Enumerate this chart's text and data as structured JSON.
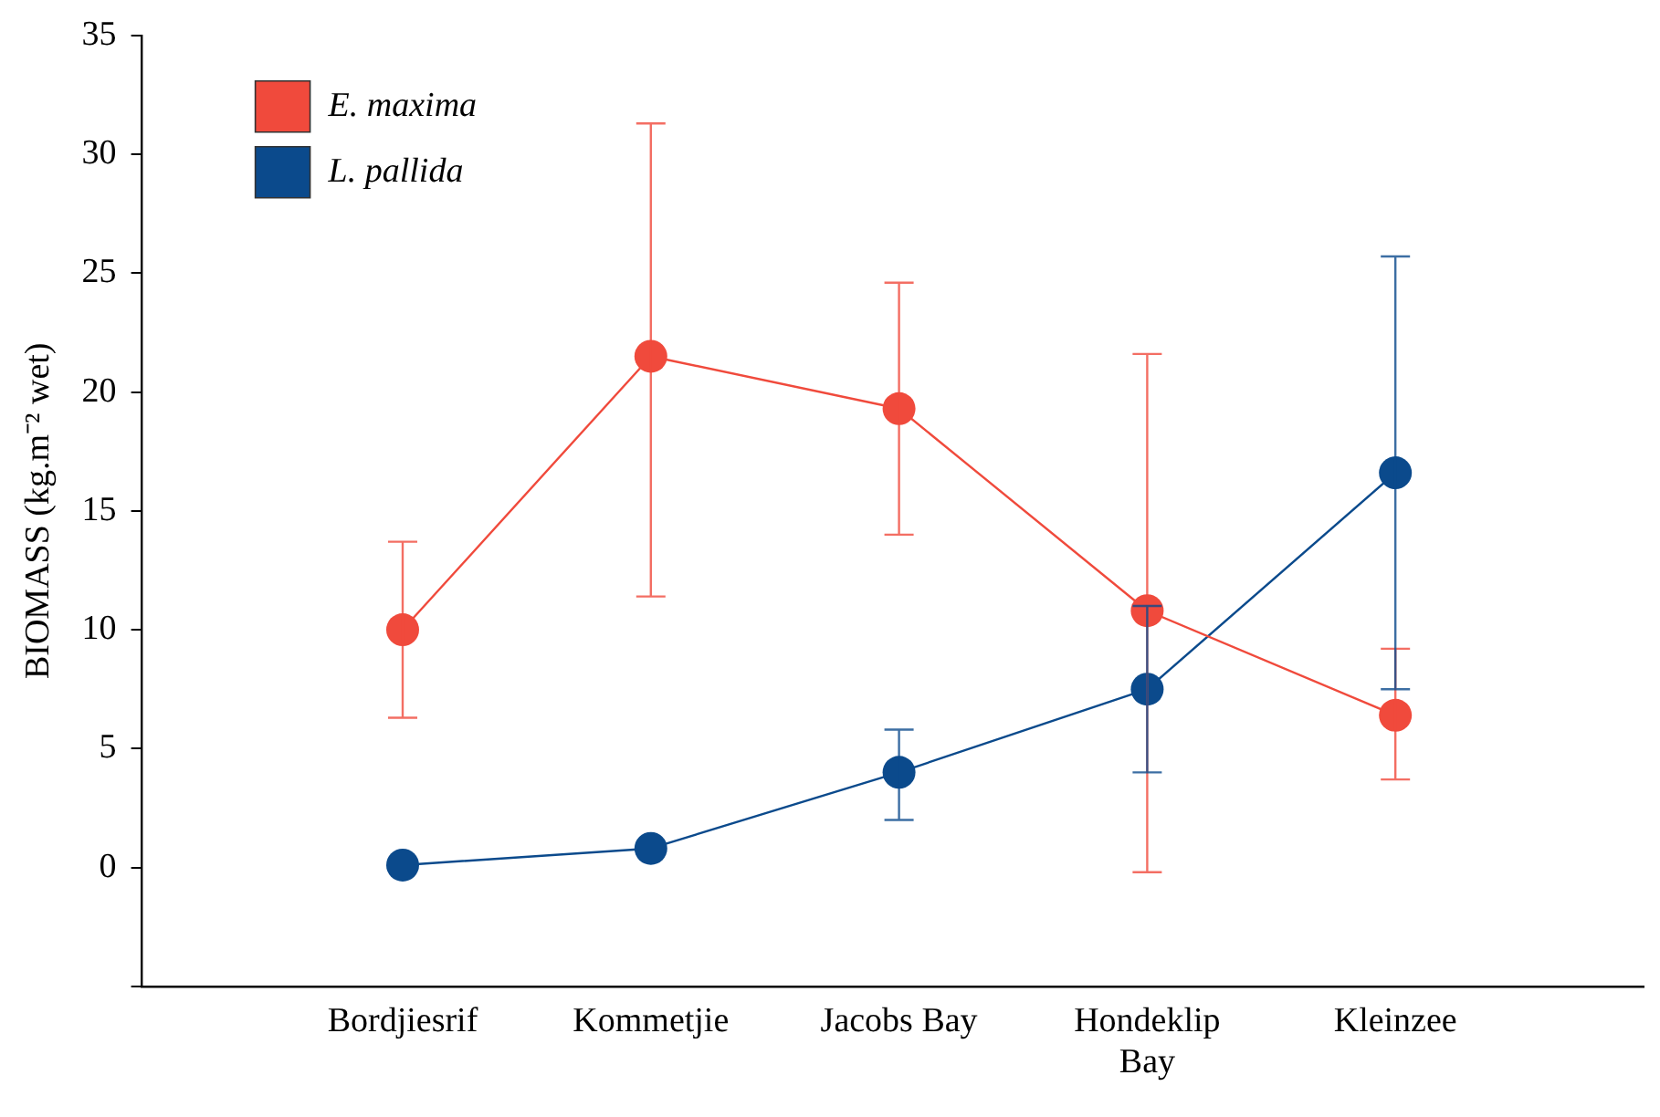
{
  "chart_data": {
    "type": "line",
    "ylabel": "BIOMASS (kg.m⁻² wet)",
    "categories": [
      "Bordjiesrif",
      "Kommetjie",
      "Jacobs Bay",
      "Hondeklip Bay",
      "Kleinzee"
    ],
    "series": [
      {
        "name": "E. maxima",
        "color": "#f04a3c",
        "values": [
          10,
          21.5,
          19.3,
          10.8,
          6.4
        ],
        "errors": [
          [
            6.3,
            13.7
          ],
          [
            11.4,
            31.3
          ],
          [
            14,
            24.6
          ],
          [
            -0.2,
            21.6
          ],
          [
            3.7,
            9.2
          ]
        ]
      },
      {
        "name": "L. pallida",
        "color": "#0b4a8c",
        "values": [
          0.1,
          0.8,
          4,
          7.5,
          16.6
        ],
        "errors": [
          null,
          null,
          [
            2,
            5.8
          ],
          [
            4,
            11
          ],
          [
            7.5,
            25.7
          ]
        ]
      }
    ],
    "ylim": [
      -5,
      35
    ],
    "yticks": [
      {
        "value": -5,
        "label": null
      },
      0,
      5,
      10,
      15,
      20,
      25,
      30,
      35
    ],
    "grid": false,
    "legend": "top left",
    "marker": "circle",
    "line_style": "solid"
  }
}
